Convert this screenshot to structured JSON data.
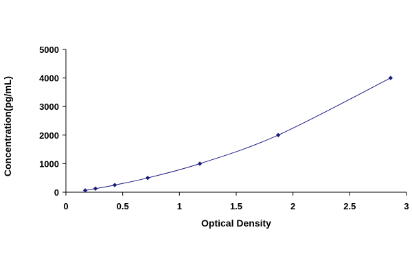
{
  "chart_data": {
    "type": "scatter",
    "title": "",
    "xlabel": "Optical Density",
    "ylabel": "Concentration(pg/mL)",
    "xlim": [
      0,
      3
    ],
    "ylim": [
      0,
      5000
    ],
    "x_ticks": [
      0,
      0.5,
      1,
      1.5,
      2,
      2.5,
      3
    ],
    "x_tick_labels": [
      "0",
      "0.5",
      "1",
      "1.5",
      "2",
      "2.5",
      "3"
    ],
    "y_ticks": [
      0,
      1000,
      2000,
      3000,
      4000,
      5000
    ],
    "y_tick_labels": [
      "0",
      "1000",
      "2000",
      "3000",
      "4000",
      "5000"
    ],
    "grid": false,
    "legend": false,
    "trendline": "smooth curve through points",
    "series": [
      {
        "x": [
          0.17,
          0.26,
          0.43,
          0.72,
          1.18,
          1.87,
          2.86
        ],
        "y": [
          62.5,
          125,
          250,
          500,
          1000,
          2000,
          4000
        ]
      }
    ],
    "colors": {
      "marker": "#1a1a80",
      "line": "#1a1a80",
      "axis": "#000000"
    }
  }
}
